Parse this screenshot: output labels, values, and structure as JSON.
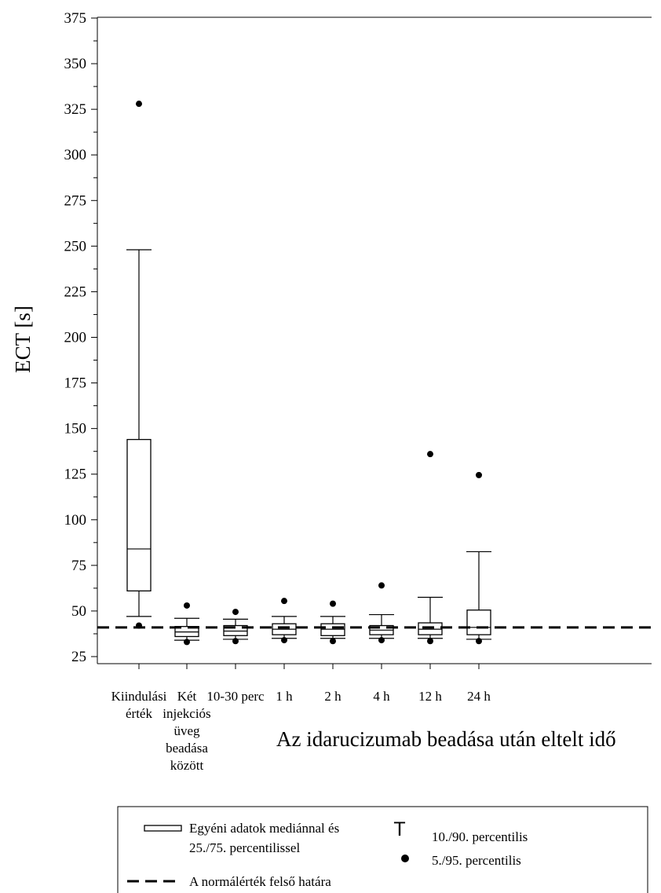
{
  "chart_data": {
    "type": "box",
    "ylabel": "ECT [s]",
    "xlabel": "Az idarucizumab beadása után eltelt idő",
    "ylim": [
      25,
      375
    ],
    "yticks": [
      25,
      50,
      75,
      100,
      125,
      150,
      175,
      200,
      225,
      250,
      275,
      300,
      325,
      350,
      375
    ],
    "categories": [
      [
        "Kiindulási",
        "érték"
      ],
      [
        "Két",
        "injekciós",
        "üveg",
        "beadása",
        "között"
      ],
      [
        "10-30 perc"
      ],
      [
        "1 h"
      ],
      [
        "2 h"
      ],
      [
        "4 h"
      ],
      [
        "12 h"
      ],
      [
        "24 h"
      ]
    ],
    "boxes": [
      {
        "p5": 42,
        "p10": 47,
        "q1": 61,
        "median": 84,
        "q3": 144,
        "p90": 248,
        "p95": 328
      },
      {
        "p5": 33,
        "p10": 34,
        "q1": 36,
        "median": 38.5,
        "q3": 41.5,
        "p90": 46,
        "p95": 53
      },
      {
        "p5": 33.5,
        "p10": 34.5,
        "q1": 36.5,
        "median": 39,
        "q3": 42,
        "p90": 45.5,
        "p95": 49.5
      },
      {
        "p5": 34,
        "p10": 35,
        "q1": 37,
        "median": 40,
        "q3": 43,
        "p90": 47,
        "p95": 55.5
      },
      {
        "p5": 33.5,
        "p10": 35,
        "q1": 36.5,
        "median": 40,
        "q3": 43,
        "p90": 47,
        "p95": 54
      },
      {
        "p5": 34,
        "p10": 35,
        "q1": 37,
        "median": 39.5,
        "q3": 42,
        "p90": 48,
        "p95": 64
      },
      {
        "p5": 33.5,
        "p10": 35,
        "q1": 37,
        "median": 40,
        "q3": 43.5,
        "p90": 57.5,
        "p95": 136
      },
      {
        "p5": 33.5,
        "p10": 34.5,
        "q1": 37,
        "median": 41,
        "q3": 50.5,
        "p90": 82.5,
        "p95": 124.5
      }
    ],
    "reference_line": 41,
    "grid": false,
    "legend": {
      "placement": "bottom",
      "box_label": [
        "Egyéni adatok mediánnal és",
        "25./75. percentilissel"
      ],
      "line_label": "A normálérték felső határa",
      "whisker_label": "10./90. percentilis",
      "dot_label": "5./95. percentilis",
      "whisker_glyph": "T"
    }
  }
}
